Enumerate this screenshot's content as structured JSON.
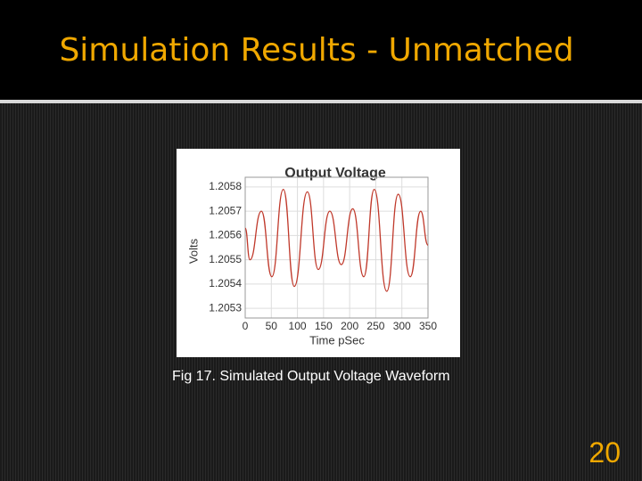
{
  "slide": {
    "title": "Simulation Results - Unmatched",
    "caption": "Fig 17. Simulated Output Voltage Waveform",
    "page_number": 20
  },
  "chart_data": {
    "type": "line",
    "title": "Output Voltage",
    "x_label": "Time pSec",
    "y_label": "Volts",
    "x": [
      0,
      9,
      31,
      51,
      73,
      94,
      119,
      140,
      162,
      184,
      206,
      227,
      247,
      271,
      293,
      316,
      336,
      350
    ],
    "values": [
      1.20563,
      1.2055,
      1.2057,
      1.20543,
      1.20579,
      1.20539,
      1.20578,
      1.20546,
      1.2057,
      1.20548,
      1.20571,
      1.20543,
      1.20579,
      1.20537,
      1.20577,
      1.20543,
      1.2057,
      1.20556
    ],
    "color": "#c0392b",
    "xlim": [
      0,
      350
    ],
    "xticks": [
      0,
      50,
      100,
      150,
      200,
      250,
      300,
      350
    ],
    "ylim": [
      1.20526,
      1.20584
    ],
    "yticks": [
      1.2053,
      1.2054,
      1.2055,
      1.2056,
      1.2057,
      1.2058
    ],
    "grid": true
  }
}
